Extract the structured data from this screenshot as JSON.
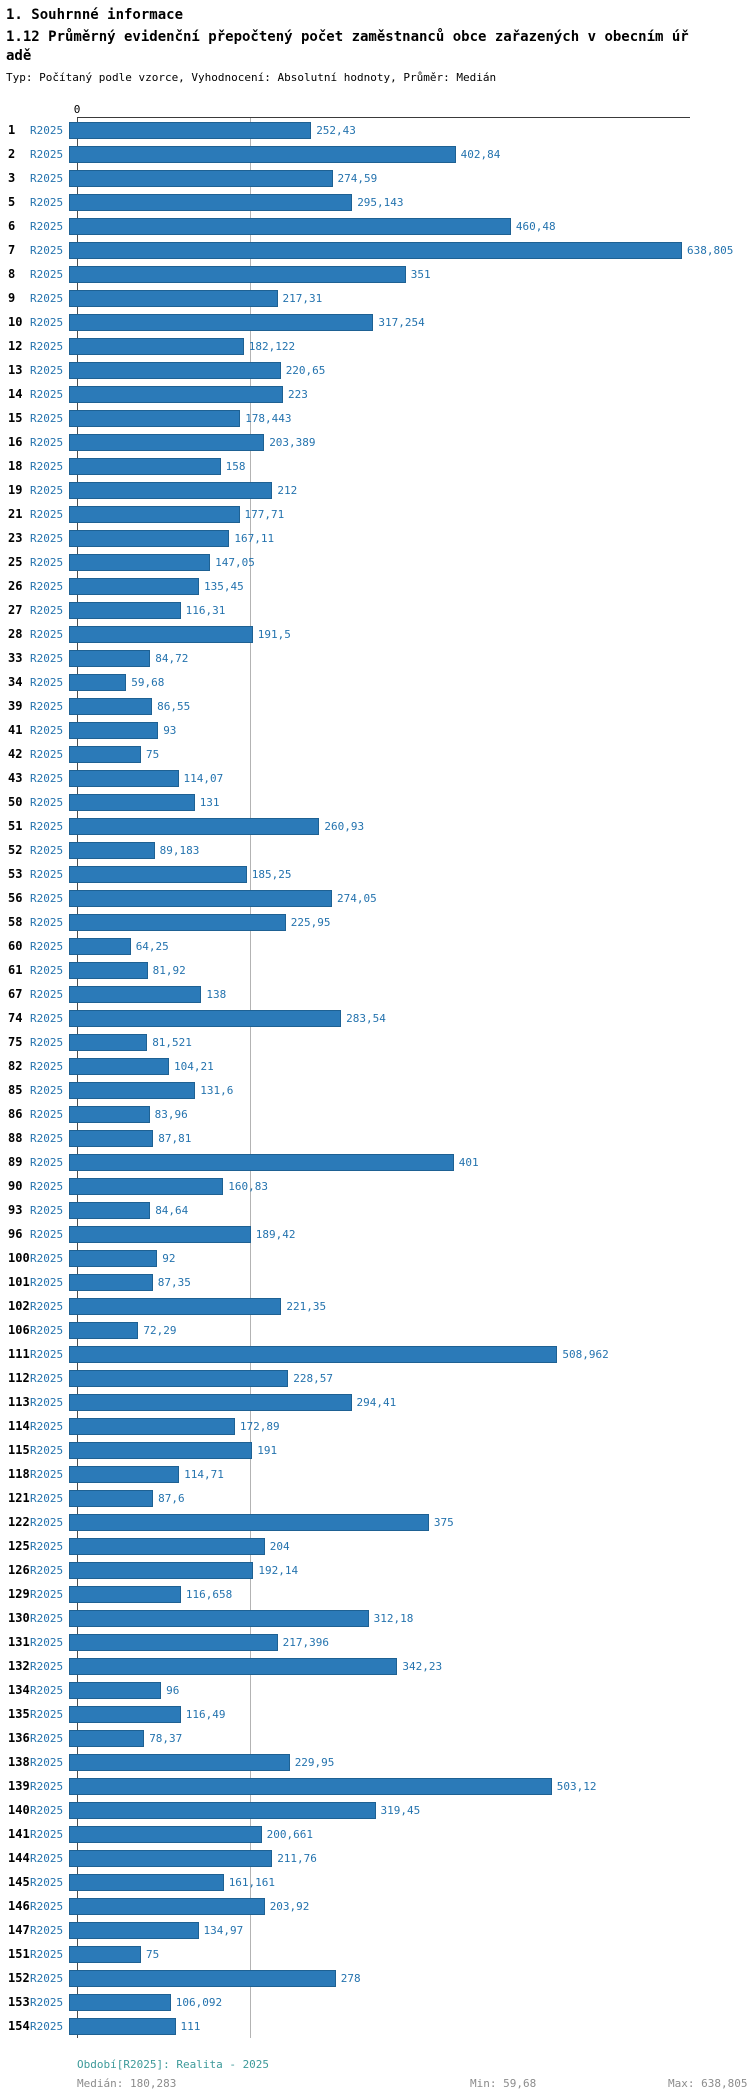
{
  "page": {
    "title": "1. Souhrnné informace",
    "subtitle": "1.12 Průměrný evidenční přepočtený počet zaměstnanců obce zařazených v obecním úřadě",
    "meta": "Typ: Počítaný podle vzorce, Vyhodnocení: Absolutní hodnoty, Průměr: Medián"
  },
  "colors": {
    "bar": "#2b7ab8",
    "bar_border": "#1e6193",
    "link": "#2473ae",
    "value_label": "#2473ae",
    "median_line": "#b3b3b3",
    "footer_period": "#3d9a9a",
    "footer_stats": "#8c8c8c"
  },
  "chart_data": {
    "type": "bar",
    "orientation": "horizontal",
    "title": "1.12 Průměrný evidenční přepočtený počet zaměstnanců obce zařazených v obecním úřadě",
    "series_label": "R2025",
    "axis_zero_label": "0",
    "xlim": [
      0,
      638.805
    ],
    "median_value": 180.283,
    "grid": "median-line-only",
    "legend_position": "none",
    "rows": [
      {
        "num": "1",
        "display": "252,43",
        "value": 252.43
      },
      {
        "num": "2",
        "display": "402,84",
        "value": 402.84
      },
      {
        "num": "3",
        "display": "274,59",
        "value": 274.59
      },
      {
        "num": "5",
        "display": "295,143",
        "value": 295.143
      },
      {
        "num": "6",
        "display": "460,48",
        "value": 460.48
      },
      {
        "num": "7",
        "display": "638,805",
        "value": 638.805
      },
      {
        "num": "8",
        "display": "351",
        "value": 351
      },
      {
        "num": "9",
        "display": "217,31",
        "value": 217.31
      },
      {
        "num": "10",
        "display": "317,254",
        "value": 317.254
      },
      {
        "num": "12",
        "display": "182,122",
        "value": 182.122
      },
      {
        "num": "13",
        "display": "220,65",
        "value": 220.65
      },
      {
        "num": "14",
        "display": "223",
        "value": 223
      },
      {
        "num": "15",
        "display": "178,443",
        "value": 178.443
      },
      {
        "num": "16",
        "display": "203,389",
        "value": 203.389
      },
      {
        "num": "18",
        "display": "158",
        "value": 158
      },
      {
        "num": "19",
        "display": "212",
        "value": 212
      },
      {
        "num": "21",
        "display": "177,71",
        "value": 177.71
      },
      {
        "num": "23",
        "display": "167,11",
        "value": 167.11
      },
      {
        "num": "25",
        "display": "147,05",
        "value": 147.05
      },
      {
        "num": "26",
        "display": "135,45",
        "value": 135.45
      },
      {
        "num": "27",
        "display": "116,31",
        "value": 116.31
      },
      {
        "num": "28",
        "display": "191,5",
        "value": 191.5
      },
      {
        "num": "33",
        "display": "84,72",
        "value": 84.72
      },
      {
        "num": "34",
        "display": "59,68",
        "value": 59.68
      },
      {
        "num": "39",
        "display": "86,55",
        "value": 86.55
      },
      {
        "num": "41",
        "display": "93",
        "value": 93
      },
      {
        "num": "42",
        "display": "75",
        "value": 75
      },
      {
        "num": "43",
        "display": "114,07",
        "value": 114.07
      },
      {
        "num": "50",
        "display": "131",
        "value": 131
      },
      {
        "num": "51",
        "display": "260,93",
        "value": 260.93
      },
      {
        "num": "52",
        "display": "89,183",
        "value": 89.183
      },
      {
        "num": "53",
        "display": "185,25",
        "value": 185.25
      },
      {
        "num": "56",
        "display": "274,05",
        "value": 274.05
      },
      {
        "num": "58",
        "display": "225,95",
        "value": 225.95
      },
      {
        "num": "60",
        "display": "64,25",
        "value": 64.25
      },
      {
        "num": "61",
        "display": "81,92",
        "value": 81.92
      },
      {
        "num": "67",
        "display": "138",
        "value": 138
      },
      {
        "num": "74",
        "display": "283,54",
        "value": 283.54
      },
      {
        "num": "75",
        "display": "81,521",
        "value": 81.521
      },
      {
        "num": "82",
        "display": "104,21",
        "value": 104.21
      },
      {
        "num": "85",
        "display": "131,6",
        "value": 131.6
      },
      {
        "num": "86",
        "display": "83,96",
        "value": 83.96
      },
      {
        "num": "88",
        "display": "87,81",
        "value": 87.81
      },
      {
        "num": "89",
        "display": "401",
        "value": 401
      },
      {
        "num": "90",
        "display": "160,83",
        "value": 160.83
      },
      {
        "num": "93",
        "display": "84,64",
        "value": 84.64
      },
      {
        "num": "96",
        "display": "189,42",
        "value": 189.42
      },
      {
        "num": "100",
        "display": "92",
        "value": 92
      },
      {
        "num": "101",
        "display": "87,35",
        "value": 87.35
      },
      {
        "num": "102",
        "display": "221,35",
        "value": 221.35
      },
      {
        "num": "106",
        "display": "72,29",
        "value": 72.29
      },
      {
        "num": "111",
        "display": "508,962",
        "value": 508.962
      },
      {
        "num": "112",
        "display": "228,57",
        "value": 228.57
      },
      {
        "num": "113",
        "display": "294,41",
        "value": 294.41
      },
      {
        "num": "114",
        "display": "172,89",
        "value": 172.89
      },
      {
        "num": "115",
        "display": "191",
        "value": 191
      },
      {
        "num": "118",
        "display": "114,71",
        "value": 114.71
      },
      {
        "num": "121",
        "display": "87,6",
        "value": 87.6
      },
      {
        "num": "122",
        "display": "375",
        "value": 375
      },
      {
        "num": "125",
        "display": "204",
        "value": 204
      },
      {
        "num": "126",
        "display": "192,14",
        "value": 192.14
      },
      {
        "num": "129",
        "display": "116,658",
        "value": 116.658
      },
      {
        "num": "130",
        "display": "312,18",
        "value": 312.18
      },
      {
        "num": "131",
        "display": "217,396",
        "value": 217.396
      },
      {
        "num": "132",
        "display": "342,23",
        "value": 342.23
      },
      {
        "num": "134",
        "display": "96",
        "value": 96
      },
      {
        "num": "135",
        "display": "116,49",
        "value": 116.49
      },
      {
        "num": "136",
        "display": "78,37",
        "value": 78.37
      },
      {
        "num": "138",
        "display": "229,95",
        "value": 229.95
      },
      {
        "num": "139",
        "display": "503,12",
        "value": 503.12
      },
      {
        "num": "140",
        "display": "319,45",
        "value": 319.45
      },
      {
        "num": "141",
        "display": "200,661",
        "value": 200.661
      },
      {
        "num": "144",
        "display": "211,76",
        "value": 211.76
      },
      {
        "num": "145",
        "display": "161,161",
        "value": 161.161
      },
      {
        "num": "146",
        "display": "203,92",
        "value": 203.92
      },
      {
        "num": "147",
        "display": "134,97",
        "value": 134.97
      },
      {
        "num": "151",
        "display": "75",
        "value": 75
      },
      {
        "num": "152",
        "display": "278",
        "value": 278
      },
      {
        "num": "153",
        "display": "106,092",
        "value": 106.092
      },
      {
        "num": "154",
        "display": "111",
        "value": 111
      }
    ],
    "footer": {
      "period": "Období[R2025]: Realita - 2025",
      "median": "Medián: 180,283",
      "min": "Min: 59,68",
      "max": "Max: 638,805"
    }
  }
}
